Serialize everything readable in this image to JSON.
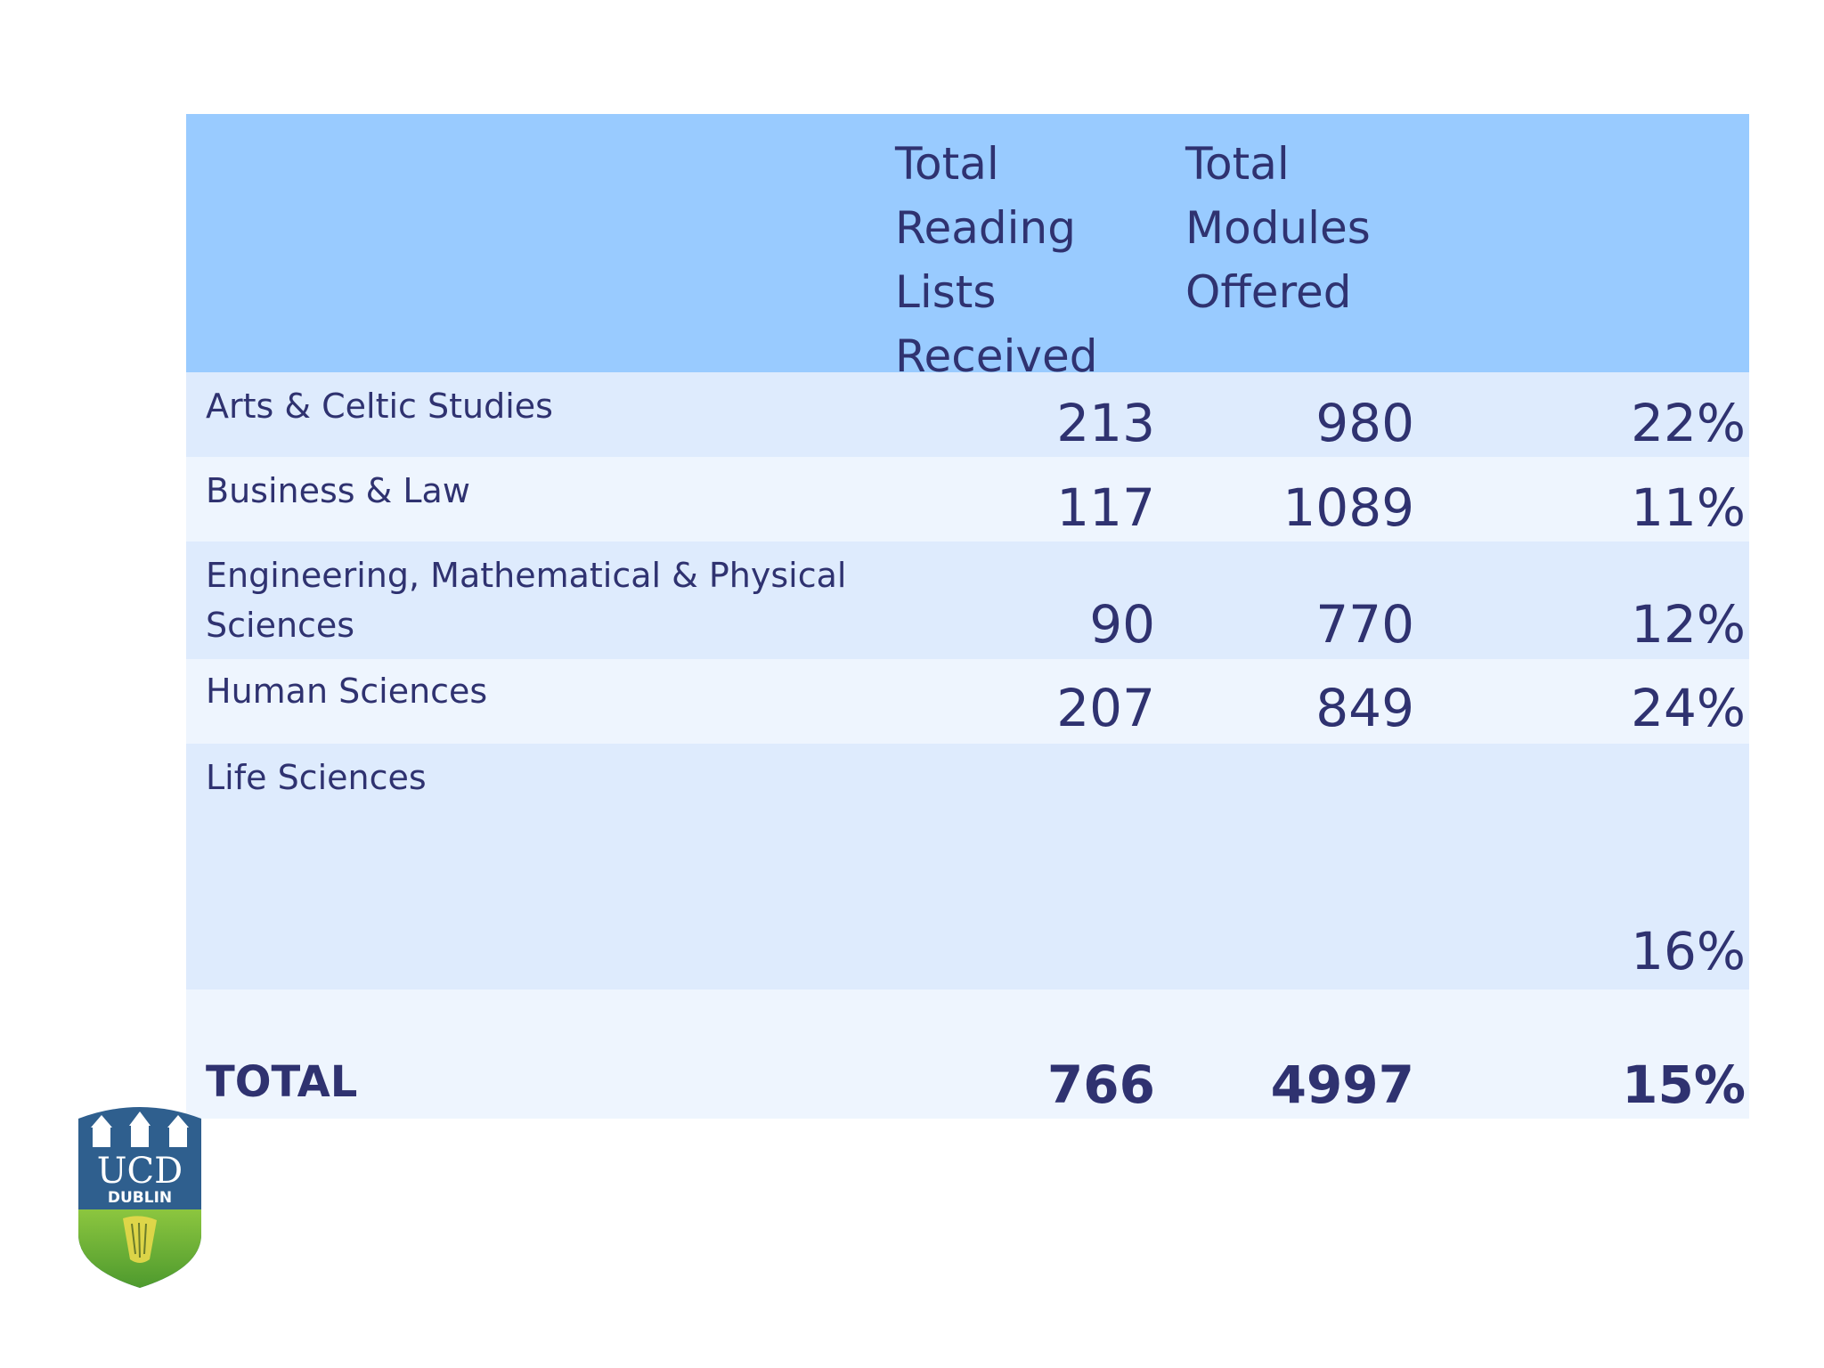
{
  "table": {
    "headers": {
      "reading_lists": [
        "Total",
        "Reading",
        "Lists",
        "Received"
      ],
      "modules": [
        "Total",
        "Modules",
        "Offered"
      ]
    },
    "rows": [
      {
        "label": "Arts & Celtic Studies",
        "reading": "213",
        "modules": "980",
        "percent": "22%"
      },
      {
        "label": "Business & Law",
        "reading": "117",
        "modules": "1089",
        "percent": "11%"
      },
      {
        "label": "Engineering, Mathematical & Physical Sciences",
        "reading": "90",
        "modules": "770",
        "percent": "12%"
      },
      {
        "label": "Human Sciences",
        "reading": "207",
        "modules": "849",
        "percent": "24%"
      },
      {
        "label": "Life Sciences",
        "reading": "",
        "modules": "",
        "percent": "16%"
      }
    ],
    "total": {
      "label": "TOTAL",
      "reading": "766",
      "modules": "4997",
      "percent": "15%"
    }
  },
  "logo": {
    "text_main": "UCD",
    "text_sub": "DUBLIN",
    "colors": {
      "navy": "#2f5f8e",
      "green": "#6fae3a",
      "yellow": "#e8d84a"
    }
  }
}
